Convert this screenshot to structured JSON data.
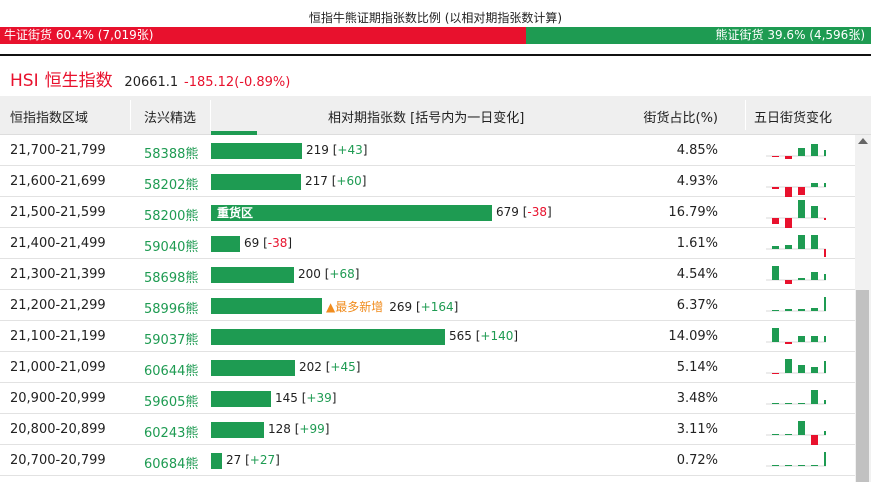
{
  "ratio": {
    "title": "恒指牛熊证期指张数比例 (以相对期指张数计算)",
    "bull_label": "牛证街货 60.4% (7,019张)",
    "bull_fraction": 0.604,
    "bear_label": "熊证街货 39.6% (4,596张)",
    "bull_color": "#e8112d",
    "bear_color": "#1e9b52"
  },
  "index": {
    "code": "HSI",
    "name": "恒生指数",
    "value": "20661.1",
    "change": "-185.12(-0.89%)"
  },
  "table": {
    "headers": {
      "range": "恒指指数区域",
      "pick": "法兴精选",
      "contracts": "相对期指张数 [括号内为一日变化]",
      "share": "街货占比(%)",
      "five_day": "五日街货变化"
    },
    "rows": [
      {
        "range": "21,700-21,799",
        "code": "58388熊",
        "count": "219",
        "delta": "+43",
        "share": "4.85%",
        "value": 219,
        "bar_label": "",
        "badge": "",
        "spark": [
          -1,
          -3,
          8,
          12,
          6
        ]
      },
      {
        "range": "21,600-21,699",
        "code": "58202熊",
        "count": "217",
        "delta": "+60",
        "share": "4.93%",
        "value": 217,
        "bar_label": "",
        "badge": "",
        "spark": [
          -2,
          -14,
          -8,
          4,
          4
        ]
      },
      {
        "range": "21,500-21,599",
        "code": "58200熊",
        "count": "679",
        "delta": "-38",
        "share": "16.79%",
        "value": 679,
        "bar_label": "重货区",
        "badge": "",
        "spark": [
          -6,
          -14,
          18,
          12,
          -2
        ]
      },
      {
        "range": "21,400-21,499",
        "code": "59040熊",
        "count": "69",
        "delta": "-38",
        "share": "1.61%",
        "value": 69,
        "bar_label": "",
        "badge": "",
        "spark": [
          3,
          4,
          14,
          14,
          -8
        ]
      },
      {
        "range": "21,300-21,399",
        "code": "58698熊",
        "count": "200",
        "delta": "+68",
        "share": "4.54%",
        "value": 200,
        "bar_label": "",
        "badge": "",
        "spark": [
          14,
          -4,
          2,
          8,
          6
        ]
      },
      {
        "range": "21,200-21,299",
        "code": "58996熊",
        "count": "269",
        "delta": "+164",
        "share": "6.37%",
        "value": 269,
        "bar_label": "",
        "badge": "▲最多新增",
        "spark": [
          0,
          2,
          2,
          3,
          14
        ]
      },
      {
        "range": "21,100-21,199",
        "code": "59037熊",
        "count": "565",
        "delta": "+140",
        "share": "14.09%",
        "value": 565,
        "bar_label": "",
        "badge": "",
        "spark": [
          14,
          -2,
          6,
          6,
          6
        ]
      },
      {
        "range": "21,000-21,099",
        "code": "60644熊",
        "count": "202",
        "delta": "+45",
        "share": "5.14%",
        "value": 202,
        "bar_label": "",
        "badge": "",
        "spark": [
          -1,
          14,
          8,
          6,
          12
        ]
      },
      {
        "range": "20,900-20,999",
        "code": "59605熊",
        "count": "145",
        "delta": "+39",
        "share": "3.48%",
        "value": 145,
        "bar_label": "",
        "badge": "",
        "spark": [
          0,
          0,
          0,
          14,
          4
        ]
      },
      {
        "range": "20,800-20,899",
        "code": "60243熊",
        "count": "128",
        "delta": "+99",
        "share": "3.11%",
        "value": 128,
        "bar_label": "",
        "badge": "",
        "spark": [
          0,
          0,
          14,
          -12,
          4
        ]
      },
      {
        "range": "20,700-20,799",
        "code": "60684熊",
        "count": "27",
        "delta": "+27",
        "share": "0.72%",
        "value": 27,
        "bar_label": "",
        "badge": "",
        "spark": [
          0,
          0,
          0,
          0,
          14
        ]
      }
    ]
  }
}
